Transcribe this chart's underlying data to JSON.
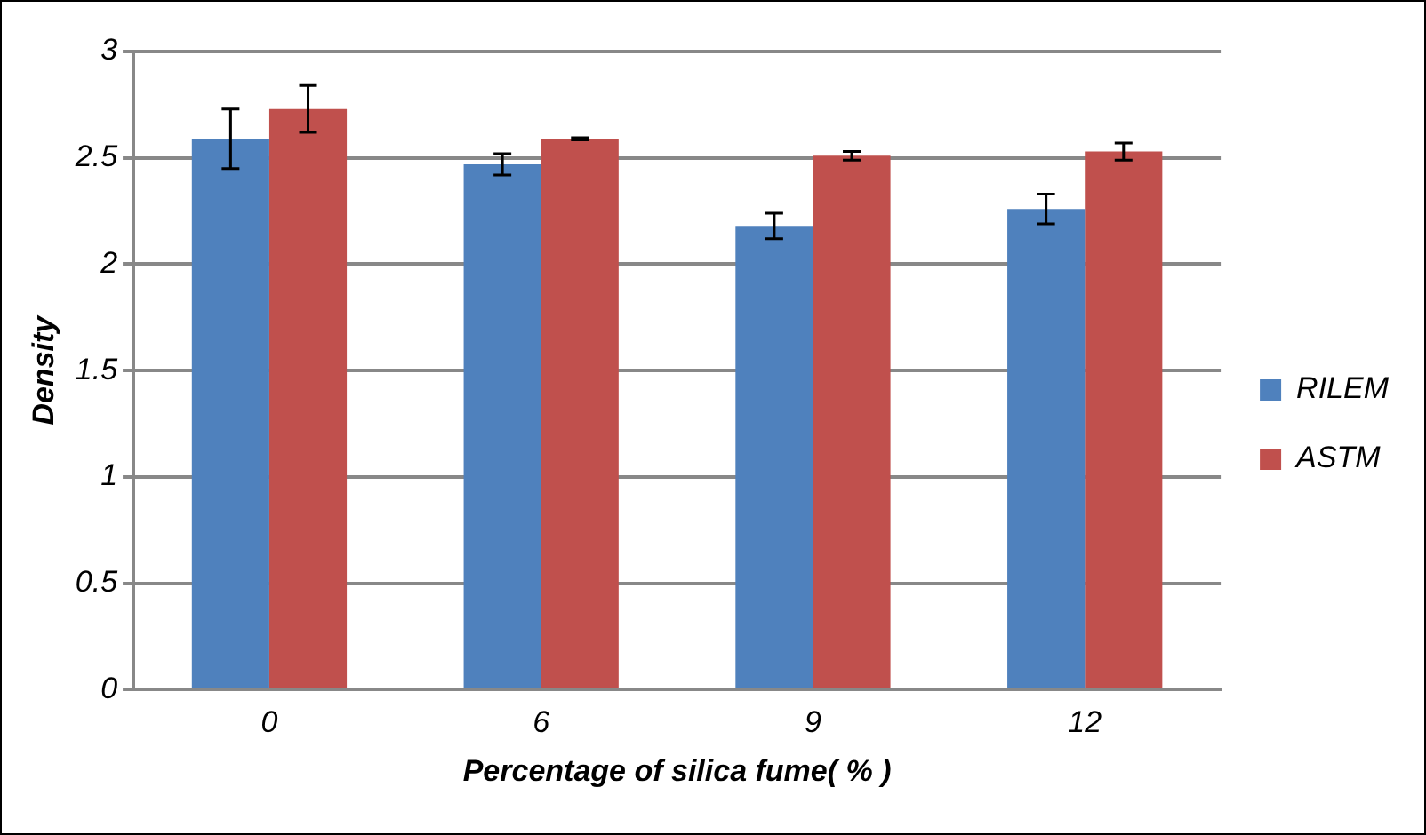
{
  "chart_data": {
    "type": "bar",
    "xlabel": "Percentage of silica fume( % )",
    "ylabel": "Density",
    "categories": [
      "0",
      "6",
      "9",
      "12"
    ],
    "series": [
      {
        "name": "RILEM",
        "color": "#4f81bd",
        "values": [
          2.59,
          2.47,
          2.18,
          2.26
        ],
        "errors": [
          0.14,
          0.05,
          0.06,
          0.07
        ]
      },
      {
        "name": "ASTM",
        "color": "#c0504d",
        "values": [
          2.73,
          2.59,
          2.51,
          2.53
        ],
        "errors": [
          0.11,
          0.005,
          0.02,
          0.04
        ]
      }
    ],
    "ylim": [
      0,
      3
    ],
    "yticks": [
      0,
      0.5,
      1,
      1.5,
      2,
      2.5,
      3
    ],
    "grid": "y",
    "legend": "right"
  }
}
